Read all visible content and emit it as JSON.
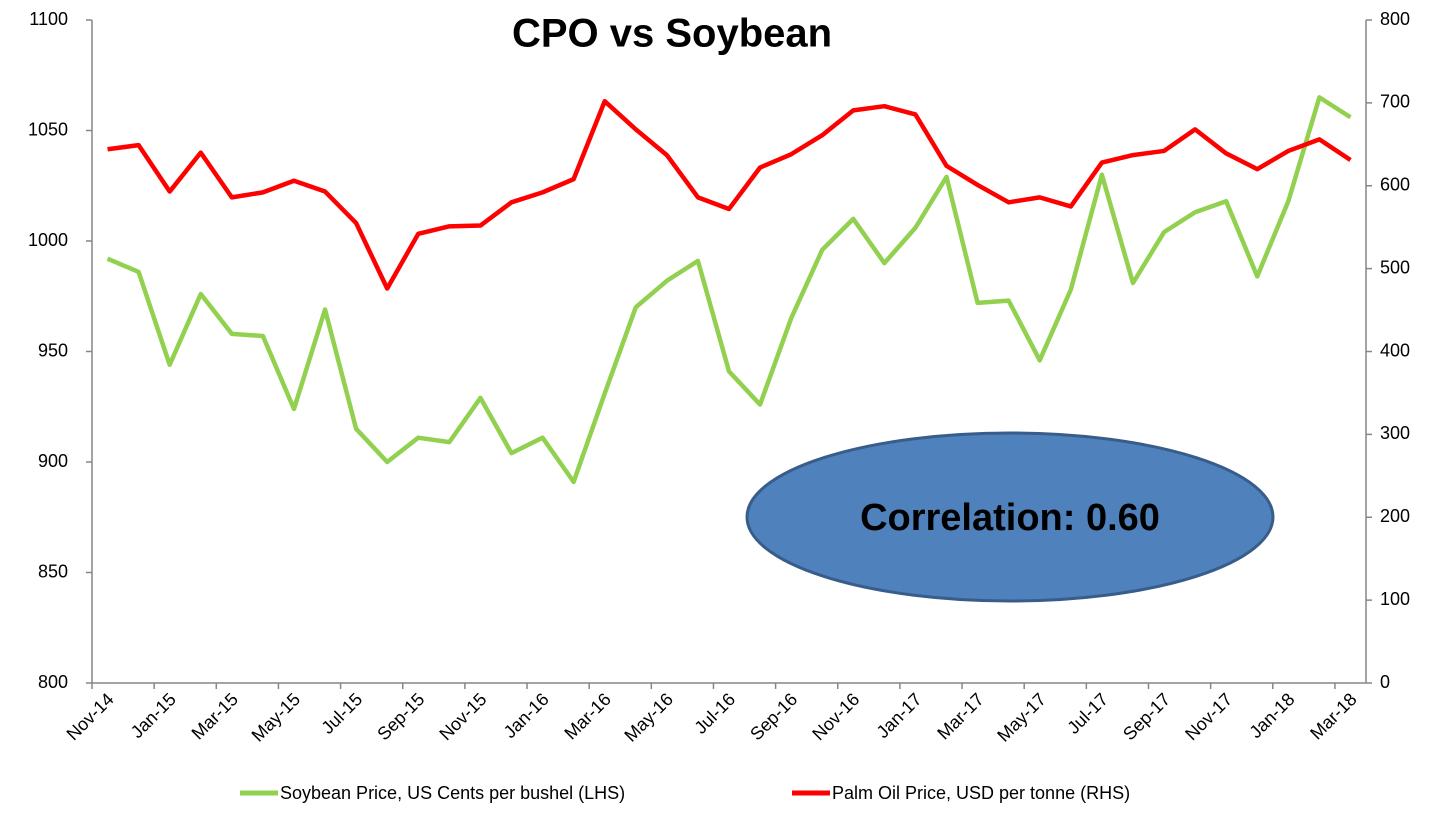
{
  "chart_data": {
    "type": "line",
    "title": "CPO vs Soybean",
    "categories": [
      "Nov-14",
      null,
      "Jan-15",
      null,
      "Mar-15",
      null,
      "May-15",
      null,
      "Jul-15",
      null,
      "Sep-15",
      null,
      "Nov-15",
      null,
      "Jan-16",
      null,
      "Mar-16",
      null,
      "May-16",
      null,
      "Jul-16",
      null,
      "Sep-16",
      null,
      "Nov-16",
      null,
      "Jan-17",
      null,
      "Mar-17",
      null,
      "May-17",
      null,
      "Jul-17",
      null,
      "Sep-17",
      null,
      "Nov-17",
      null,
      "Jan-18",
      null,
      "Mar-18"
    ],
    "series": [
      {
        "name": "Soybean Price, US Cents per bushel (LHS)",
        "color": "#92d050",
        "axis": "y",
        "values": [
          992,
          986,
          944,
          976,
          958,
          957,
          924,
          969,
          915,
          900,
          911,
          909,
          929,
          904,
          911,
          891,
          931,
          970,
          982,
          991,
          941,
          926,
          965,
          996,
          1010,
          990,
          1006,
          1029,
          972,
          973,
          946,
          978,
          1030,
          981,
          1004,
          1013,
          1018,
          984,
          1018,
          1065,
          1056
        ]
      },
      {
        "name": "Palm Oil Price, USD per tonne (RHS)",
        "color": "#ff0000",
        "axis": "y2",
        "values": [
          644,
          649,
          593,
          640,
          586,
          592,
          606,
          593,
          555,
          476,
          542,
          551,
          552,
          580,
          592,
          608,
          702,
          668,
          637,
          586,
          572,
          622,
          638,
          661,
          691,
          696,
          686,
          624,
          601,
          580,
          586,
          575,
          628,
          637,
          642,
          668,
          639,
          620,
          642,
          656,
          631
        ]
      }
    ],
    "ylim": [
      800,
      1100
    ],
    "yticks": [
      800,
      850,
      900,
      950,
      1000,
      1050,
      1100
    ],
    "y2lim": [
      0,
      800
    ],
    "y2ticks": [
      0,
      100,
      200,
      300,
      400,
      500,
      600,
      700,
      800
    ],
    "annotations": [
      "Correlation:  0.60"
    ],
    "legend": "bottom"
  }
}
